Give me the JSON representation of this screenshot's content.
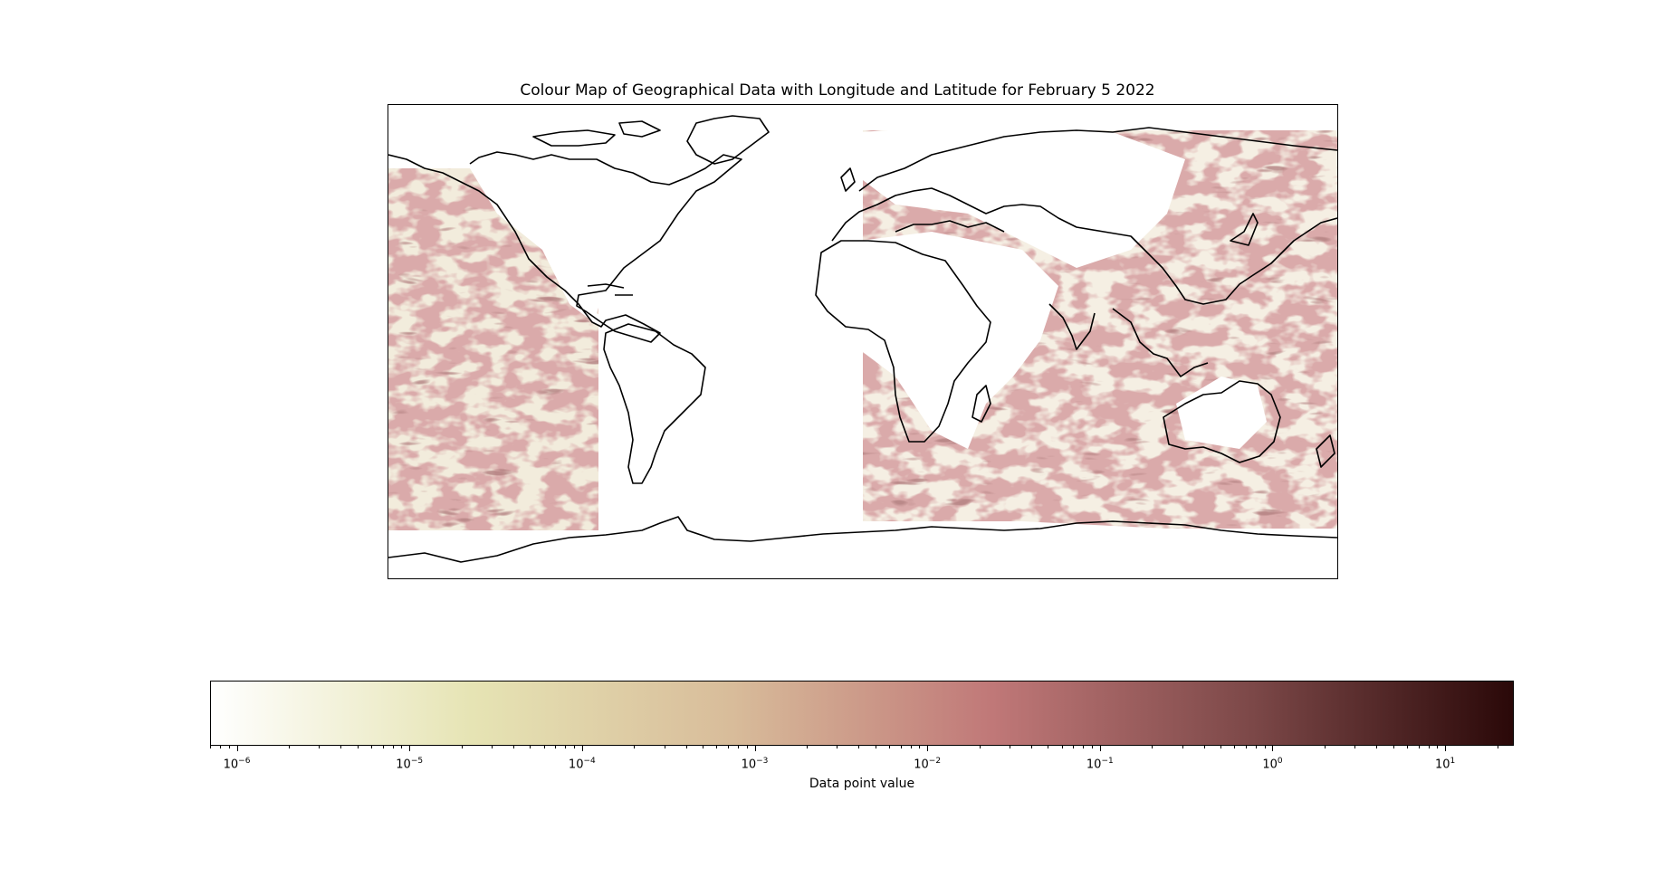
{
  "title": "Colour Map of Geographical Data with Longitude and Latitude for February 5 2022",
  "colorbar": {
    "label": "Data point value",
    "scale": "log",
    "range": [
      7e-07,
      25
    ],
    "ticks": [
      {
        "base": "10",
        "exp": "−6",
        "value": 1e-06
      },
      {
        "base": "10",
        "exp": "−5",
        "value": 1e-05
      },
      {
        "base": "10",
        "exp": "−4",
        "value": 0.0001
      },
      {
        "base": "10",
        "exp": "−3",
        "value": 0.001
      },
      {
        "base": "10",
        "exp": "−2",
        "value": 0.01
      },
      {
        "base": "10",
        "exp": "−1",
        "value": 0.1
      },
      {
        "base": "10",
        "exp": "0",
        "value": 1
      },
      {
        "base": "10",
        "exp": "1",
        "value": 10
      }
    ],
    "colors": [
      "#ffffff",
      "#e6e4b4",
      "#d8bc9a",
      "#c07878",
      "#7c4848",
      "#2a0808"
    ]
  },
  "chart_data": {
    "type": "heatmap",
    "projection": "PlateCarree",
    "xlim": [
      -180,
      180
    ],
    "ylim": [
      -90,
      90
    ],
    "coverage": "data present over oceans, gap over Americas longitudes (approx -100 to 0 longitude)",
    "colors": {
      "coastline": "#000000",
      "land": "#ffffff"
    }
  }
}
